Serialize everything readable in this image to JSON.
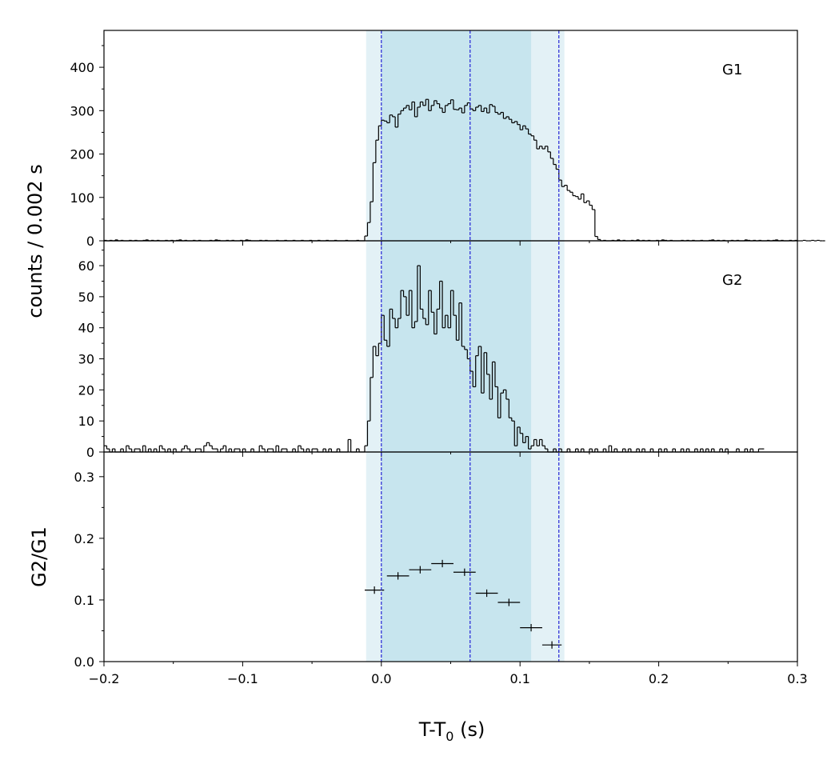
{
  "chart_data": {
    "type": "line",
    "x_axis": {
      "label_main": "T-T",
      "label_sub": "0",
      "label_unit": " (s)",
      "range": [
        -0.2,
        0.3
      ],
      "ticks": [
        -0.2,
        -0.1,
        0.0,
        0.1,
        0.2,
        0.3
      ],
      "tick_labels": [
        "−0.2",
        "−0.1",
        "0.0",
        "0.1",
        "0.2",
        "0.3"
      ]
    },
    "shared_ylabel": "counts /  0.002 s",
    "shaded_regions": [
      {
        "x0": -0.011,
        "x1": 0.132,
        "color": "#e3f1f6"
      },
      {
        "x0": 0.0,
        "x1": 0.108,
        "color": "#c7e5ee"
      }
    ],
    "vertical_lines": {
      "x": [
        0.0,
        0.064,
        0.128
      ],
      "color": "#2323d6"
    },
    "panels": [
      {
        "id": "G1",
        "label": "G1",
        "kind": "histogram",
        "ylim": [
          0,
          485
        ],
        "yticks": [
          0,
          100,
          200,
          300,
          400
        ],
        "ytick_labels": [
          "0",
          "100",
          "200",
          "300",
          "400"
        ],
        "bin_width": 0.002,
        "x_start": -0.2,
        "counts": [
          1,
          0,
          1,
          0,
          2,
          0,
          1,
          0,
          0,
          1,
          0,
          1,
          0,
          0,
          1,
          2,
          0,
          1,
          0,
          1,
          0,
          0,
          1,
          0,
          1,
          0,
          1,
          2,
          0,
          1,
          0,
          0,
          1,
          0,
          1,
          0,
          0,
          0,
          1,
          0,
          2,
          1,
          0,
          0,
          1,
          0,
          1,
          0,
          0,
          1,
          0,
          2,
          1,
          0,
          0,
          0,
          1,
          0,
          1,
          0,
          0,
          0,
          1,
          0,
          0,
          1,
          0,
          0,
          1,
          0,
          0,
          1,
          0,
          0,
          1,
          0,
          0,
          1,
          0,
          0,
          1,
          0,
          0,
          1,
          0,
          0,
          0,
          1,
          0,
          0,
          0,
          1,
          0,
          0,
          11,
          42,
          90,
          180,
          232,
          265,
          278,
          276,
          272,
          290,
          286,
          262,
          292,
          300,
          306,
          312,
          302,
          320,
          286,
          308,
          320,
          312,
          326,
          300,
          312,
          323,
          316,
          306,
          296,
          312,
          316,
          325,
          303,
          302,
          306,
          295,
          312,
          318,
          304,
          300,
          308,
          312,
          298,
          306,
          295,
          314,
          310,
          296,
          292,
          296,
          282,
          286,
          280,
          272,
          275,
          268,
          256,
          265,
          258,
          246,
          242,
          232,
          212,
          218,
          212,
          218,
          205,
          190,
          176,
          165,
          140,
          125,
          128,
          116,
          112,
          104,
          102,
          96,
          108,
          88,
          92,
          82,
          72,
          10,
          3,
          0,
          1,
          0,
          0,
          1,
          0,
          2,
          0,
          1,
          0,
          0,
          1,
          0,
          2,
          0,
          1,
          0,
          1,
          0,
          0,
          1,
          0,
          2,
          1,
          0,
          1,
          0,
          0,
          0,
          1,
          0,
          1,
          0,
          1,
          0,
          0,
          1,
          0,
          0,
          1,
          2,
          0,
          1,
          0,
          1,
          0,
          0,
          1,
          0,
          1,
          0,
          0,
          2,
          1,
          0,
          1,
          0,
          1,
          0,
          0,
          1,
          0,
          1,
          2,
          0,
          1,
          0,
          0,
          1,
          0,
          1,
          0,
          0,
          1,
          0,
          0,
          1,
          0,
          1,
          0,
          0
        ]
      },
      {
        "id": "G2",
        "label": "G2",
        "kind": "histogram",
        "ylim": [
          0,
          68
        ],
        "yticks": [
          0,
          10,
          20,
          30,
          40,
          50,
          60
        ],
        "ytick_labels": [
          "0",
          "10",
          "20",
          "30",
          "40",
          "50",
          "60"
        ],
        "bin_width": 0.002,
        "x_start": -0.2,
        "counts": [
          2,
          1,
          0,
          1,
          0,
          0,
          1,
          0,
          2,
          1,
          0,
          1,
          1,
          0,
          2,
          0,
          1,
          0,
          1,
          0,
          2,
          1,
          0,
          1,
          0,
          1,
          0,
          0,
          1,
          2,
          1,
          0,
          0,
          1,
          1,
          0,
          2,
          3,
          2,
          1,
          1,
          0,
          1,
          2,
          0,
          1,
          0,
          1,
          1,
          0,
          1,
          0,
          0,
          1,
          0,
          0,
          2,
          1,
          0,
          1,
          1,
          0,
          2,
          0,
          1,
          1,
          0,
          0,
          1,
          0,
          2,
          1,
          0,
          1,
          0,
          1,
          1,
          0,
          0,
          1,
          0,
          1,
          0,
          0,
          1,
          0,
          0,
          0,
          4,
          0,
          0,
          1,
          0,
          0,
          2,
          10,
          24,
          34,
          31,
          35,
          44,
          36,
          34,
          46,
          43,
          40,
          43,
          52,
          50,
          44,
          52,
          40,
          42,
          60,
          46,
          43,
          41,
          52,
          45,
          38,
          46,
          55,
          40,
          44,
          40,
          52,
          44,
          36,
          48,
          34,
          33,
          30,
          26,
          21,
          31,
          34,
          19,
          32,
          25,
          17,
          29,
          21,
          11,
          19,
          20,
          17,
          11,
          10,
          2,
          8,
          6,
          3,
          5,
          1,
          2,
          4,
          2,
          4,
          2,
          1,
          0,
          0,
          1,
          0,
          1,
          0,
          0,
          1,
          0,
          0,
          1,
          0,
          1,
          0,
          0,
          1,
          0,
          1,
          0,
          0,
          1,
          0,
          2,
          0,
          1,
          0,
          0,
          1,
          0,
          1,
          0,
          0,
          1,
          0,
          1,
          0,
          0,
          1,
          0,
          0,
          1,
          0,
          1,
          0,
          0,
          1,
          0,
          0,
          1,
          0,
          1,
          0,
          0,
          1,
          0,
          1,
          0,
          1,
          0,
          1,
          0,
          0,
          1,
          0,
          1,
          0,
          0,
          0,
          1,
          0,
          0,
          1,
          0,
          1,
          0,
          0,
          1,
          1
        ]
      },
      {
        "id": "ratio",
        "kind": "errorbar",
        "ylabel": "G2/G1",
        "ylim": [
          0,
          0.34
        ],
        "yticks": [
          0.0,
          0.1,
          0.2,
          0.3
        ],
        "ytick_labels": [
          "0.0",
          "0.1",
          "0.2",
          "0.3"
        ],
        "points": [
          {
            "x": -0.005,
            "y": 0.116,
            "xerr": 0.007,
            "yerr": 0.006
          },
          {
            "x": 0.012,
            "y": 0.139,
            "xerr": 0.008,
            "yerr": 0.006
          },
          {
            "x": 0.028,
            "y": 0.149,
            "xerr": 0.008,
            "yerr": 0.006
          },
          {
            "x": 0.044,
            "y": 0.159,
            "xerr": 0.008,
            "yerr": 0.006
          },
          {
            "x": 0.06,
            "y": 0.145,
            "xerr": 0.008,
            "yerr": 0.006
          },
          {
            "x": 0.076,
            "y": 0.111,
            "xerr": 0.008,
            "yerr": 0.006
          },
          {
            "x": 0.092,
            "y": 0.096,
            "xerr": 0.008,
            "yerr": 0.006
          },
          {
            "x": 0.108,
            "y": 0.055,
            "xerr": 0.008,
            "yerr": 0.006
          },
          {
            "x": 0.123,
            "y": 0.027,
            "xerr": 0.007,
            "yerr": 0.006
          }
        ]
      }
    ]
  }
}
